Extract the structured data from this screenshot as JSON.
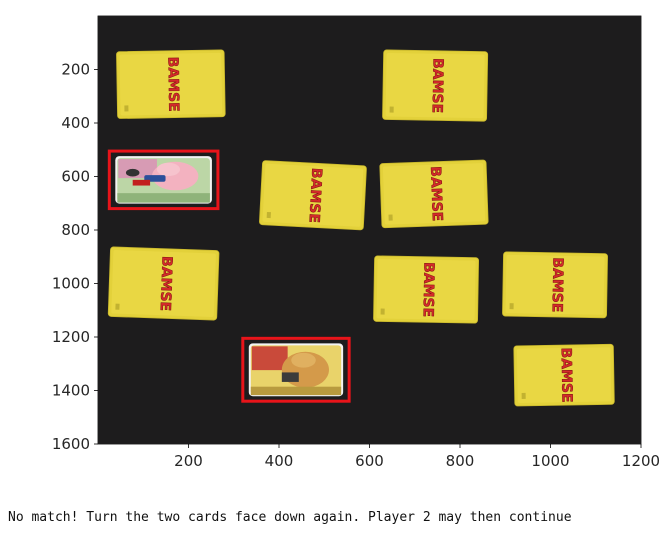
{
  "plot": {
    "xlim": [
      0,
      1200
    ],
    "ylim": [
      1600,
      0
    ],
    "x_ticks": [
      200,
      400,
      600,
      800,
      1000,
      1200
    ],
    "y_ticks": [
      200,
      400,
      600,
      800,
      1000,
      1200,
      1400,
      1600
    ],
    "background": "#1d1c1d",
    "highlight_color": "#e8141a"
  },
  "cards": [
    {
      "id": "r1c1",
      "face": "down",
      "brand": "BAMSE",
      "x": [
        42,
        280
      ],
      "y": [
        130,
        380
      ],
      "rot": -1
    },
    {
      "id": "r1c3",
      "face": "down",
      "brand": "BAMSE",
      "x": [
        630,
        860
      ],
      "y": [
        130,
        390
      ],
      "rot": 1
    },
    {
      "id": "r2c1",
      "face": "up",
      "highlighted": true,
      "scene": "pink-pig-character",
      "x": [
        25,
        265
      ],
      "y": [
        505,
        720
      ],
      "rot": 0
    },
    {
      "id": "r2c2",
      "face": "down",
      "brand": "BAMSE",
      "x": [
        360,
        590
      ],
      "y": [
        550,
        790
      ],
      "rot": 3
    },
    {
      "id": "r2c3",
      "face": "down",
      "brand": "BAMSE",
      "x": [
        625,
        860
      ],
      "y": [
        545,
        785
      ],
      "rot": -2
    },
    {
      "id": "r3c1",
      "face": "down",
      "brand": "BAMSE",
      "x": [
        25,
        265
      ],
      "y": [
        870,
        1130
      ],
      "rot": 2
    },
    {
      "id": "r3c3",
      "face": "down",
      "brand": "BAMSE",
      "x": [
        610,
        840
      ],
      "y": [
        900,
        1145
      ],
      "rot": 1
    },
    {
      "id": "r3c4",
      "face": "down",
      "brand": "BAMSE",
      "x": [
        895,
        1125
      ],
      "y": [
        885,
        1125
      ],
      "rot": 1
    },
    {
      "id": "r4c2",
      "face": "up",
      "highlighted": true,
      "scene": "yellow-bear-character",
      "x": [
        320,
        555
      ],
      "y": [
        1205,
        1440
      ],
      "rot": 0
    },
    {
      "id": "r4c4",
      "face": "down",
      "brand": "BAMSE",
      "x": [
        920,
        1140
      ],
      "y": [
        1230,
        1455
      ],
      "rot": -1
    }
  ],
  "status_message": "No match! Turn the two cards face down again. Player 2 may then continue"
}
